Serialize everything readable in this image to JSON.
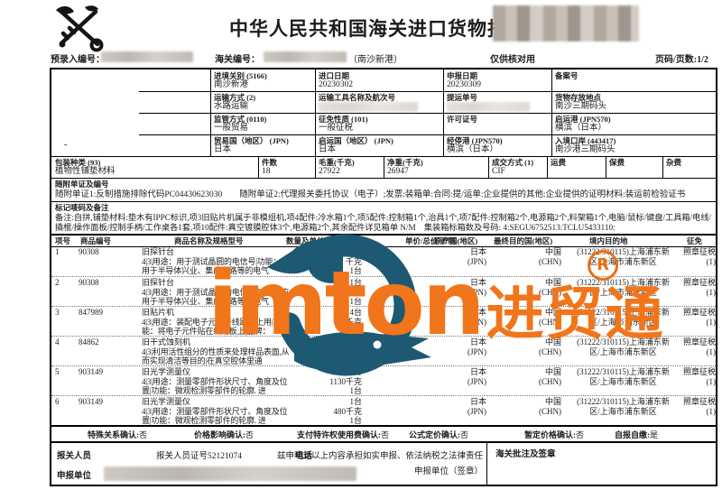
{
  "page": {
    "title": "中华人民共和国海关进口货物报关单",
    "pre_entry_label": "预录入编号：",
    "customs_no_label": "海关编号：",
    "port_note": "（南沙新港）",
    "check_only": "仅供核对用",
    "page_info": "页码/页数:1/2"
  },
  "fields": {
    "entry_customs": {
      "label": "进境关别 (5166)",
      "value": "南沙新港"
    },
    "import_date": {
      "label": "进口日期",
      "value": "20230302"
    },
    "declare_date": {
      "label": "申报日期",
      "value": "20230309"
    },
    "record_no": {
      "label": "备案号",
      "value": ""
    },
    "transport_mode": {
      "label": "运输方式 (2)",
      "value": "水路运输"
    },
    "transport_name": {
      "label": "运输工具名称及航次号",
      "value": ""
    },
    "bl_no": {
      "label": "提运单号",
      "value": ""
    },
    "storage_place": {
      "label": "货物存放地点",
      "value": "南沙三期码头"
    },
    "supervision_mode": {
      "label": "监管方式 (0110)",
      "value": "一般贸易"
    },
    "levy_nature": {
      "label": "征免性质 (101)",
      "value": "一般征税"
    },
    "license_no": {
      "label": "许可证号",
      "value": ""
    },
    "departure_port": {
      "label": "启运港 (JPN570)",
      "value": "横滨（日本）"
    },
    "trade_country": {
      "label": "贸易国（地区） (JPN)",
      "value": "日本"
    },
    "departure_country": {
      "label": "启运国（地区） (JPN)",
      "value": "日本"
    },
    "transit_port": {
      "label": "经停港 (JPN570)",
      "value": "横滨（日本）"
    },
    "entry_port": {
      "label": "入境口岸 (443417)",
      "value": "南沙港三期码头"
    },
    "packing_type": {
      "label": "包装种类 (93)",
      "value": "植物性铺垫材料"
    },
    "pieces": {
      "label": "件数",
      "value": "18"
    },
    "gross_weight": {
      "label": "毛重(千克)",
      "value": "27922"
    },
    "net_weight": {
      "label": "净重(千克)",
      "value": "26947"
    },
    "deal_terms": {
      "label": "成交方式 (1)",
      "value": "CIF"
    },
    "freight": {
      "label": "运费",
      "value": ""
    },
    "insurance": {
      "label": "保费",
      "value": ""
    },
    "misc_fee": {
      "label": "杂费",
      "value": ""
    }
  },
  "docs": {
    "label": "随附单证及编号",
    "content": "随附单证1:反制措施排除代码PC04430623030　　随附单证2:代理报关委托协议（电子）;发票:装箱单:合同:提/运单:企业提供的其他:企业提供的证明材料:装运前检验证书"
  },
  "marks": {
    "label": "标记唛码及备注",
    "content": "备注:自拼,铺垫材料:垫木有IPPC标识,项3旧贴片机属于非模组机,项4配件:冷水箱1个,项5配件:控制箱1个,治具1个,项7配件:控制箱2个,电源箱2个,料架箱1个,电脑/鼠标/键盘/工具箱/电线/撬棍/操作面板/控制手柄/工作桌各1套,项10配件:真空镀膜腔体3个,电源箱2个,其余配件详见箱单 N/M　集装箱标箱数及号码: 4:SEGU6752513:TCLU5433110:"
  },
  "items": {
    "headers": [
      "项号",
      "商品编号",
      "商品名称及规格型号",
      "数量及单位",
      "单价/总价/币制",
      "原产国(地区)",
      "最终目的国(地区)",
      "境内目的地",
      "征免"
    ],
    "rows": [
      {
        "no": "1",
        "code": "90308",
        "name": "旧探针台",
        "desc": "4|3|用途：用于测试晶圆的电信号|功能：应用于半导体兴业、集成电路等的电气",
        "qty": [
          "1台",
          "千克",
          "1台"
        ],
        "price": "",
        "origin": [
          "日本",
          "(JPN)"
        ],
        "dest": [
          "中国",
          "(CHN)"
        ],
        "domestic": [
          "(31222/310115)上海浦东新",
          "区/上海市浦东新区"
        ],
        "levy": [
          "照章征税",
          "(1)"
        ]
      },
      {
        "no": "2",
        "code": "90308",
        "name": "旧探针台",
        "desc": "4|3|用途：用于测试晶圆的电信号|功能：应用于半导体兴业、集成电路等的电气",
        "qty": [
          "1台",
          "千克",
          "1台"
        ],
        "price": "",
        "origin": [
          "日本",
          "(JPN)"
        ],
        "dest": [
          "中国",
          "(CHN)"
        ],
        "domestic": [
          "(31222/310115)上海浦东新",
          "区/上海市浦东新区"
        ],
        "levy": [
          "照章征税",
          "(1)"
        ]
      },
      {
        "no": "3",
        "code": "847989",
        "name": "旧贴片机",
        "desc": "4|3|用途：装配电子元件于线路板上用|功能：将电子元件贴在线路板上|品牌：",
        "qty": [
          "4台",
          "600千克",
          "4台"
        ],
        "price": "",
        "origin": [
          "日本",
          "(JPN)"
        ],
        "dest": [
          "中国",
          "(CHN)"
        ],
        "domestic": [
          "(31222/310115)上海浦东新",
          "区/上海市浦东新区"
        ],
        "levy": [
          "照章征税",
          "(1)"
        ]
      },
      {
        "no": "4",
        "code": "84862",
        "name": "旧干式蚀刻机",
        "desc": "4|3|利用活性组分的性质来处理样品表面,从而实现清洁等目的|在真空腔体里通",
        "qty": [
          "1台",
          "2800千克",
          "1台"
        ],
        "price": "",
        "origin": [
          "日本",
          "(JPN)"
        ],
        "dest": [
          "中国",
          "(CHN)"
        ],
        "domestic": [
          "(31222/310115)上海浦东新",
          "区/上海市浦东新区"
        ],
        "levy": [
          "照章征税",
          "(1)"
        ]
      },
      {
        "no": "5",
        "code": "903149",
        "name": "旧光学测量仪",
        "desc": "4|3|用途：测量零部件形状尺寸、角度及位置|功能：微观检测零部件的轮廓. 进",
        "qty": [
          "1台",
          "1130千克",
          "1台"
        ],
        "price": "",
        "origin": [
          "日本",
          "(JPN)"
        ],
        "dest": [
          "中国",
          "(CHN)"
        ],
        "domestic": [
          "(31222/310115)上海浦东新",
          "区/上海市浦东新区"
        ],
        "levy": [
          "照章征税",
          "(1)"
        ]
      },
      {
        "no": "6",
        "code": "903149",
        "name": "旧光学测量仪",
        "desc": "4|3|用途：测量零部件形状尺寸、角度及位置|功能：微观检测零部件的轮廓. 进",
        "qty": [
          "1台",
          "480千克",
          "1台"
        ],
        "price": "",
        "origin": [
          "日本",
          "(JPN)"
        ],
        "dest": [
          "中国",
          "(CHN)"
        ],
        "domestic": [
          "(31222/310115)上海浦东新",
          "区/上海市浦东新区"
        ],
        "levy": [
          "照章征税",
          "(1)"
        ]
      }
    ]
  },
  "confirmations": [
    {
      "label": "特殊关系确认:",
      "value": "否"
    },
    {
      "label": "价格影响确认:",
      "value": "否"
    },
    {
      "label": "支付特许权使用费确认:",
      "value": "否"
    },
    {
      "label": "公式定价确认:",
      "value": "否"
    },
    {
      "label": "暂定价格确认:",
      "value": "否"
    },
    {
      "label": "自报自缴:",
      "value": "是"
    }
  ],
  "footer": {
    "declarant_label": "报关人员",
    "declarant_cert": "报关人员证号52121074",
    "phone_label": "电话",
    "statement": "兹申明对以上内容承担如实申报、依法纳税之法律责任",
    "sign_label": "申报单位（签章）",
    "declare_unit_label": "申报单位",
    "customs_note_label": "海关批注及签章"
  },
  "watermark": {
    "latin": "imton",
    "cn": "进贸通",
    "registered": "R",
    "orange": "#f1751a",
    "teal": "#1d5972"
  }
}
